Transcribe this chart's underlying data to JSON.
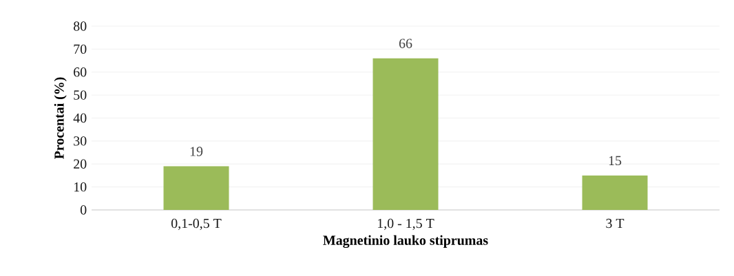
{
  "chart_data": {
    "type": "bar",
    "xlabel": "Magnetinio lauko stiprumas",
    "ylabel": "Procentai (%)",
    "categories": [
      "0,1-0,5 T",
      "1,0 - 1,5 T",
      "3 T"
    ],
    "values": [
      19,
      66,
      15
    ],
    "data_labels": true,
    "color": "#9bbb59",
    "ylim": [
      0,
      80
    ],
    "yticks": [
      0,
      10,
      20,
      30,
      40,
      50,
      60,
      70,
      80
    ],
    "grid": "y"
  }
}
